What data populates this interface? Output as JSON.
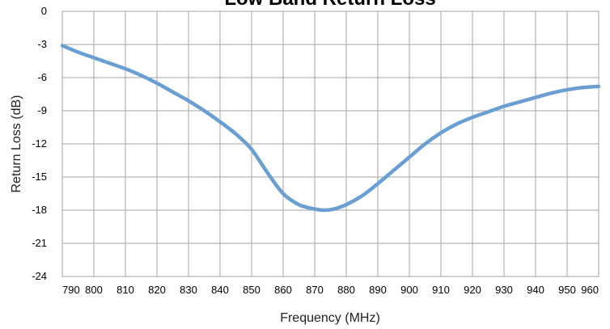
{
  "chart_data": {
    "type": "line",
    "title": "Low Band Return Loss",
    "xlabel": "Frequency (MHz)",
    "ylabel": "Return Loss (dB)",
    "xlim": [
      790,
      960
    ],
    "ylim": [
      -24,
      0
    ],
    "xticks": [
      790,
      800,
      810,
      820,
      830,
      840,
      850,
      860,
      870,
      880,
      890,
      900,
      910,
      920,
      930,
      940,
      950,
      960
    ],
    "yticks": [
      0,
      -3,
      -6,
      -9,
      -12,
      -15,
      -18,
      -21,
      -24
    ],
    "grid": true,
    "line_color": "#6a9fd4",
    "series": [
      {
        "x": [
          790,
          795,
          800,
          805,
          810,
          815,
          820,
          825,
          830,
          835,
          840,
          845,
          850,
          855,
          860,
          865,
          870,
          873,
          876,
          880,
          885,
          890,
          895,
          900,
          905,
          910,
          915,
          920,
          925,
          930,
          935,
          940,
          945,
          950,
          955,
          960
        ],
        "y": [
          -3.1,
          -3.7,
          -4.2,
          -4.7,
          -5.2,
          -5.8,
          -6.5,
          -7.3,
          -8.1,
          -9.0,
          -10.0,
          -11.1,
          -12.5,
          -14.6,
          -16.5,
          -17.5,
          -17.9,
          -18.0,
          -17.9,
          -17.5,
          -16.7,
          -15.6,
          -14.4,
          -13.2,
          -12.0,
          -11.0,
          -10.2,
          -9.6,
          -9.1,
          -8.6,
          -8.2,
          -7.8,
          -7.4,
          -7.1,
          -6.9,
          -6.8
        ]
      }
    ]
  }
}
